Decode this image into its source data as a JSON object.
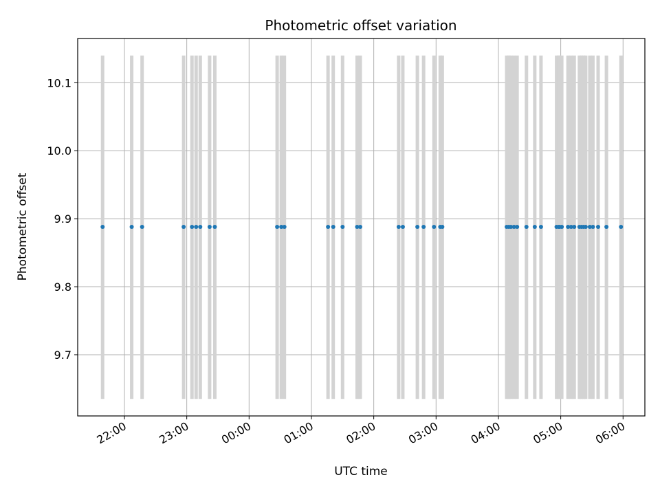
{
  "chart_data": {
    "type": "scatter",
    "title": "Photometric offset variation",
    "xlabel": "UTC time",
    "ylabel": "Photometric offset",
    "x_axis": {
      "kind": "time",
      "range": [
        "21:15",
        "06:21"
      ],
      "ticks": [
        "22:00",
        "23:00",
        "00:00",
        "01:00",
        "02:00",
        "03:00",
        "04:00",
        "05:00",
        "06:00"
      ]
    },
    "y_axis": {
      "range": [
        9.61,
        10.165
      ],
      "ticks": [
        9.7,
        9.8,
        9.9,
        10.0,
        10.1
      ],
      "tick_labels": [
        "9.7",
        "9.8",
        "9.9",
        "10.0",
        "10.1"
      ]
    },
    "grid": true,
    "markers_color": "#1f77b4",
    "errorbar_color": "#d3d3d3",
    "errorbar_range": [
      9.635,
      10.14
    ],
    "series": [
      {
        "y": 9.888,
        "times": [
          "21:39",
          "22:07",
          "22:17",
          "22:57",
          "23:05",
          "23:09",
          "23:13",
          "23:22",
          "23:27",
          "00:27",
          "00:31",
          "00:34",
          "01:16",
          "01:21",
          "01:30",
          "01:44",
          "01:47",
          "02:24",
          "02:28",
          "02:42",
          "02:48",
          "02:58",
          "03:04",
          "03:06",
          "04:08",
          "04:10",
          "04:12",
          "04:15",
          "04:18",
          "04:27",
          "04:35",
          "04:41",
          "04:56",
          "04:58",
          "04:59",
          "05:01",
          "05:07",
          "05:10",
          "05:13",
          "05:18",
          "05:20",
          "05:22",
          "05:24",
          "05:28",
          "05:31",
          "05:36",
          "05:44",
          "05:58"
        ]
      }
    ]
  }
}
